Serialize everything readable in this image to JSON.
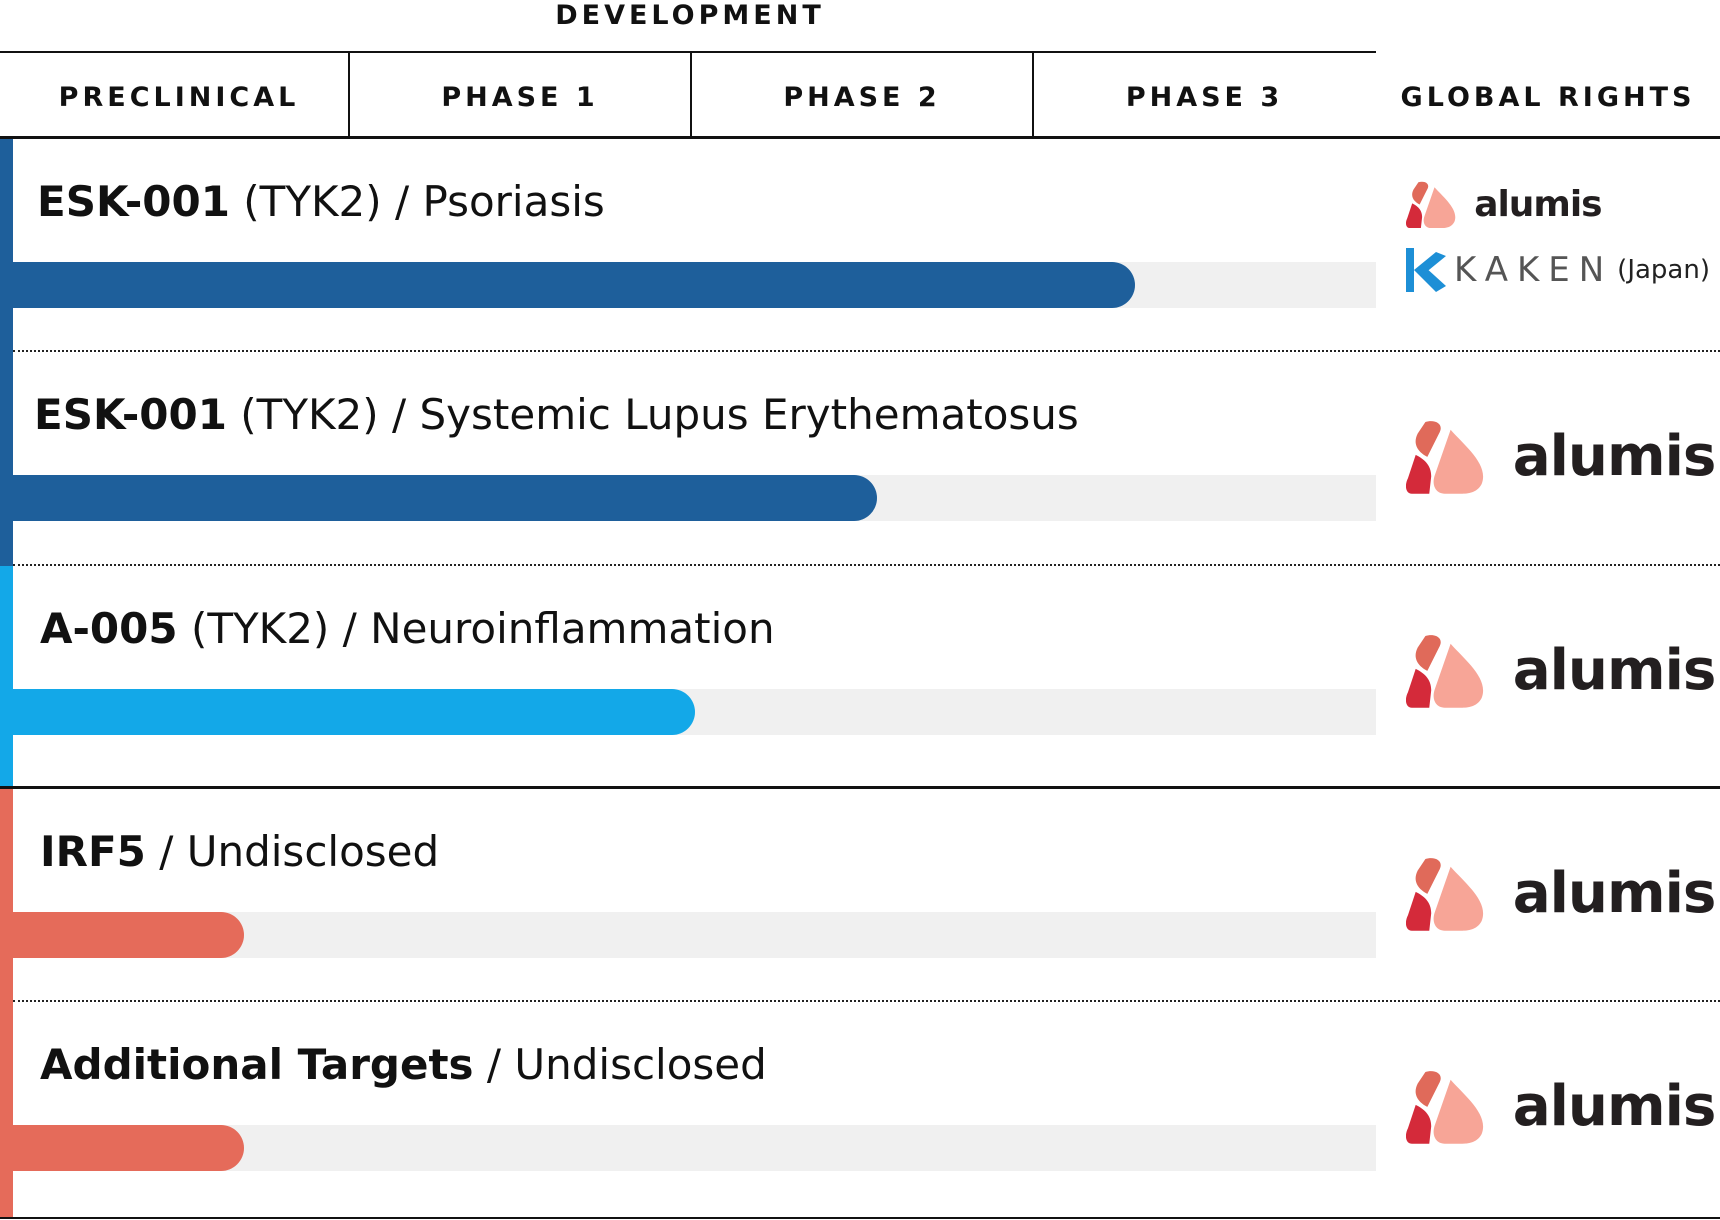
{
  "header": {
    "group_label": "DEVELOPMENT",
    "phases": [
      "PRECLINICAL",
      "PHASE 1",
      "PHASE 2",
      "PHASE 3"
    ],
    "rights_label": "GLOBAL RIGHTS"
  },
  "colors": {
    "dark_blue": "#1e5f9b",
    "light_blue": "#13a8e8",
    "coral": "#e56b5a",
    "track": "#f0f0f0",
    "logo_top": "#e06a5a",
    "logo_left": "#d42a3a",
    "logo_right": "#f7a597",
    "kaken_blue": "#1d8fd6"
  },
  "chart_data": {
    "type": "bar",
    "title": "",
    "x_axis": [
      "PRECLINICAL",
      "PHASE 1",
      "PHASE 2",
      "PHASE 3"
    ],
    "xlim": [
      0,
      4
    ],
    "value_unit": "phase columns completed",
    "programs": [
      {
        "name_bold": "ESK-001",
        "name_rest": " (TYK2) / Psoriasis",
        "progress": 3.3,
        "color_key": "dark_blue",
        "rights": [
          "alumis",
          "KAKEN"
        ],
        "rights_note": "(Japan)"
      },
      {
        "name_bold": "ESK-001",
        "name_rest": " (TYK2) / Systemic Lupus Erythematosus",
        "progress": 2.55,
        "color_key": "dark_blue",
        "rights": [
          "alumis"
        ]
      },
      {
        "name_bold": "A-005",
        "name_rest": " (TYK2) / Neuroinflammation",
        "progress": 2.02,
        "color_key": "light_blue",
        "rights": [
          "alumis"
        ]
      },
      {
        "name_bold": "IRF5",
        "name_rest": " / Undisclosed",
        "progress": 0.71,
        "color_key": "coral",
        "rights": [
          "alumis"
        ]
      },
      {
        "name_bold": "Additional Targets",
        "name_rest": " / Undisclosed",
        "progress": 0.71,
        "color_key": "coral",
        "rights": [
          "alumis"
        ]
      }
    ]
  }
}
